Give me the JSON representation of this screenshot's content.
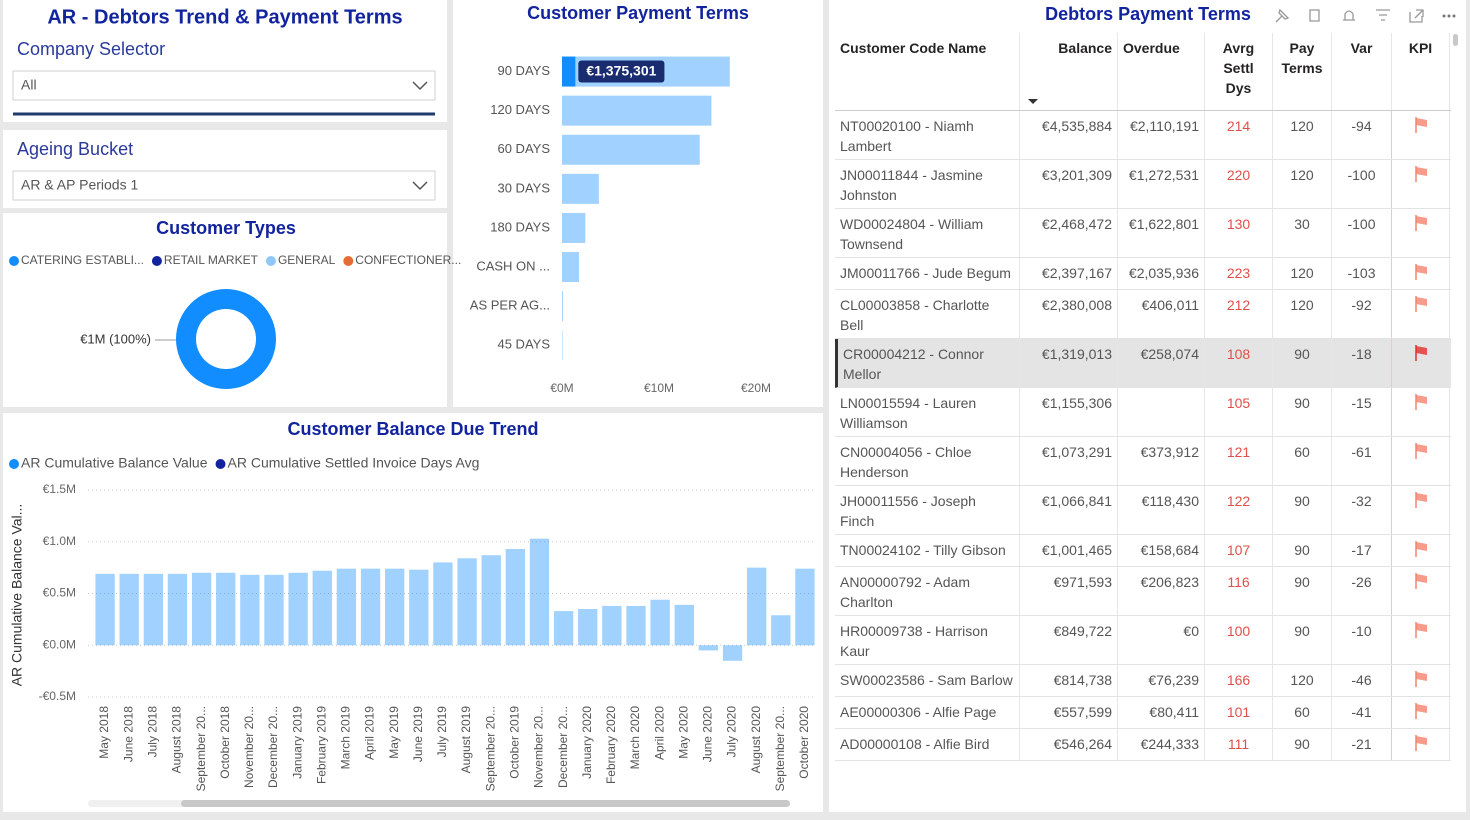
{
  "header": {
    "title": "AR - Debtors Trend & Payment Terms"
  },
  "slicers": [
    {
      "label": "Company Selector",
      "value": "All"
    },
    {
      "label": "Ageing Bucket",
      "value": "AR & AP Periods 1"
    }
  ],
  "chart_data": [
    {
      "type": "donut",
      "title": "Customer Types",
      "categories": [
        "CATERING ESTABLI...",
        "RETAIL MARKET",
        "GENERAL",
        "CONFECTIONER..."
      ],
      "values": [
        1000000,
        0,
        0,
        0
      ],
      "value_labels": [
        "€1M (100%)",
        null,
        null,
        null
      ],
      "colors": [
        "#118dff",
        "#12239e",
        "#8fc8f8",
        "#e66c37"
      ]
    },
    {
      "type": "hbar",
      "title": "Customer Payment Terms",
      "categories": [
        "90 DAYS",
        "120 DAYS",
        "60 DAYS",
        "30 DAYS",
        "180 DAYS",
        "CASH ON ...",
        "AS PER AG...",
        "45 DAYS"
      ],
      "values": [
        17300000,
        15400000,
        14200000,
        3800000,
        2400000,
        1750000,
        100000,
        50000
      ],
      "color": "#118dff",
      "highlight": {
        "values": [
          1375301,
          null,
          null,
          null,
          null,
          null,
          null,
          null
        ],
        "value_labels": [
          "€1,375,301",
          null,
          null,
          null,
          null,
          null,
          null,
          null
        ]
      },
      "xlim": [
        0,
        24000000
      ],
      "xticks": [
        {
          "value": 0,
          "label": "€0M"
        },
        {
          "value": 10000000,
          "label": "€10M"
        },
        {
          "value": 20000000,
          "label": "€20M"
        }
      ]
    },
    {
      "type": "bar",
      "title": "Customer Balance Due Trend",
      "y_label": "AR Cumulative Balance Val...",
      "categories": [
        "May 2018",
        "June 2018",
        "July 2018",
        "August 2018",
        "September 20...",
        "October 2018",
        "November 20...",
        "December 20...",
        "January 2019",
        "February 2019",
        "March 2019",
        "April 2019",
        "May 2019",
        "June 2019",
        "July 2019",
        "August 2019",
        "September 20...",
        "October 2019",
        "November 20...",
        "December 20...",
        "January 2020",
        "February 2020",
        "March 2020",
        "April 2020",
        "May 2020",
        "June 2020",
        "July 2020",
        "August 2020",
        "September 20...",
        "October 2020"
      ],
      "series": [
        {
          "name": "AR Cumulative Balance Value",
          "color": "#118dff",
          "values": [
            690000,
            690000,
            690000,
            690000,
            700000,
            700000,
            680000,
            680000,
            700000,
            720000,
            740000,
            740000,
            740000,
            730000,
            800000,
            840000,
            870000,
            930000,
            1030000,
            330000,
            350000,
            380000,
            380000,
            440000,
            390000,
            -50000,
            -150000,
            750000,
            290000,
            740000
          ]
        },
        {
          "name": "AR Cumulative Settled Invoice Days Avg",
          "color": "#12239e",
          "values": [
            null,
            null,
            null,
            null,
            null,
            null,
            null,
            null,
            null,
            null,
            null,
            null,
            null,
            null,
            null,
            null,
            null,
            null,
            null,
            null,
            null,
            null,
            null,
            null,
            null,
            null,
            null,
            null,
            null,
            null
          ]
        }
      ],
      "ylim": [
        -500000,
        1500000
      ],
      "yticks": [
        {
          "value": -500000,
          "label": "-€0.5M"
        },
        {
          "value": 0,
          "label": "€0.0M"
        },
        {
          "value": 500000,
          "label": "€0.5M"
        },
        {
          "value": 1000000,
          "label": "€1.0M"
        },
        {
          "value": 1500000,
          "label": "€1.5M"
        }
      ],
      "grid": true
    }
  ],
  "table": {
    "title": "Debtors Payment Terms",
    "columns": [
      "Customer Code Name",
      "Balance",
      "Overdue",
      "Avrg Settl Dys",
      "Pay Terms",
      "Var",
      "KPI"
    ],
    "selected_row": 5,
    "rows": [
      [
        "NT00020100 - Niamh Lambert",
        "€4,535,884",
        "€2,110,191",
        214,
        120,
        -94
      ],
      [
        "JN00011844 - Jasmine Johnston",
        "€3,201,309",
        "€1,272,531",
        220,
        120,
        -100
      ],
      [
        "WD00024804 - William Townsend",
        "€2,468,472",
        "€1,622,801",
        130,
        30,
        -100
      ],
      [
        "JM00011766 - Jude Begum",
        "€2,397,167",
        "€2,035,936",
        223,
        120,
        -103
      ],
      [
        "CL00003858 - Charlotte Bell",
        "€2,380,008",
        "€406,011",
        212,
        120,
        -92
      ],
      [
        "CR00004212 - Connor Mellor",
        "€1,319,013",
        "€258,074",
        108,
        90,
        -18
      ],
      [
        "LN00015594 - Lauren Williamson",
        "€1,155,306",
        null,
        105,
        90,
        -15
      ],
      [
        "CN00004056 - Chloe Henderson",
        "€1,073,291",
        "€373,912",
        121,
        60,
        -61
      ],
      [
        "JH00011556 - Joseph Finch",
        "€1,066,841",
        "€118,430",
        122,
        90,
        -32
      ],
      [
        "TN00024102 - Tilly Gibson",
        "€1,001,465",
        "€158,684",
        107,
        90,
        -17
      ],
      [
        "AN00000792 - Adam Charlton",
        "€971,593",
        "€206,823",
        116,
        90,
        -26
      ],
      [
        "HR00009738 - Harrison Kaur",
        "€849,722",
        "€0",
        100,
        90,
        -10
      ],
      [
        "SW00023586 - Sam Barlow",
        "€814,738",
        "€76,239",
        166,
        120,
        -46
      ],
      [
        "AE00000306 - Alfie Page",
        "€557,599",
        "€80,411",
        101,
        60,
        -41
      ],
      [
        "AD00000108 - Alfie Bird",
        "€546,264",
        "€244,333",
        111,
        90,
        -21
      ]
    ]
  }
}
